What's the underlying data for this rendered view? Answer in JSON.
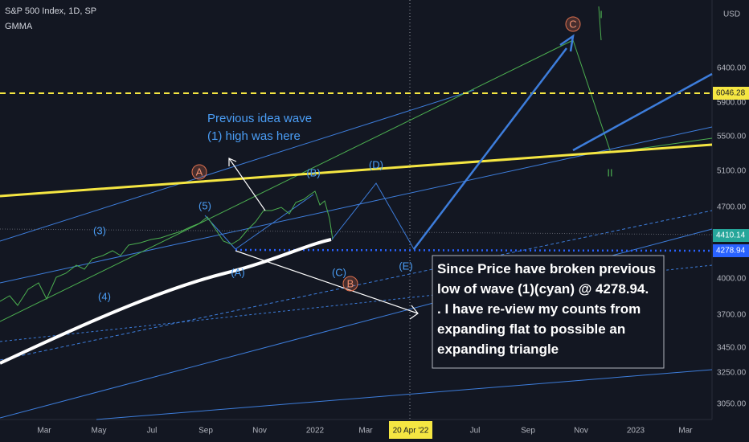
{
  "header": {
    "symbol": "S&P 500 Index, 1D, SP",
    "indicator": "GMMA",
    "currency": "USD"
  },
  "price_axis": [
    "6400.00",
    "5900.00",
    "5500.00",
    "5100.00",
    "4700.00",
    "4000.00",
    "3700.00",
    "3450.00",
    "3250.00",
    "3050.00"
  ],
  "price_tags": [
    "6046.28",
    "4410.14",
    "4278.94"
  ],
  "time_axis": [
    "Mar",
    "May",
    "Jul",
    "Sep",
    "Nov",
    "2022",
    "Mar",
    "Jul",
    "Sep",
    "Nov",
    "2023",
    "Mar"
  ],
  "cursor_date": "20 Apr '22",
  "annotation": [
    "Previous idea wave",
    "(1) high was here"
  ],
  "note": [
    "Since Price have broken previous",
    "low of wave (1)(cyan) @ 4278.94.",
    ". I have re-view my counts from",
    "expanding flat to possible an",
    "expanding triangle"
  ],
  "waves": [
    "(3)",
    "(4)",
    "(5)",
    "A",
    "(A)",
    "(B)",
    "(C)",
    "B",
    "(D)",
    "(E)",
    "C",
    "I",
    "II"
  ]
}
